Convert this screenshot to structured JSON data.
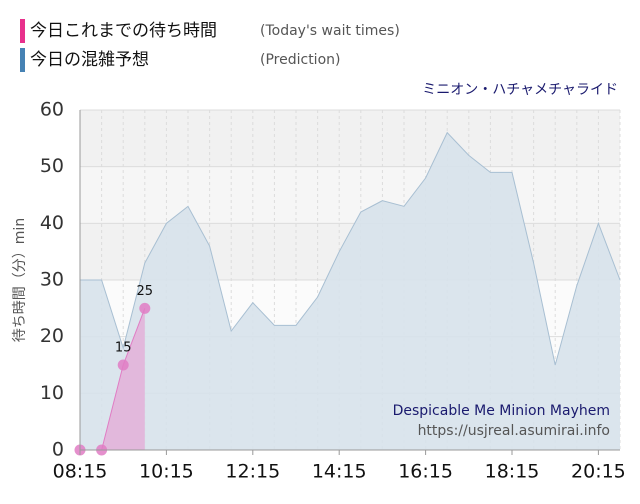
{
  "chart_data": {
    "type": "area",
    "title": "ミニオン・ハチャメチャライド",
    "ylabel": "待ち時間（分）min",
    "annotations": [
      "Despicable Me Minion Mayhem",
      "https://usjreal.asumirai.info"
    ],
    "xlim": [
      495,
      1245
    ],
    "ylim": [
      0,
      60
    ],
    "xticks": [
      {
        "value": 495,
        "label": "08:15"
      },
      {
        "value": 615,
        "label": "10:15"
      },
      {
        "value": 735,
        "label": "12:15"
      },
      {
        "value": 855,
        "label": "14:15"
      },
      {
        "value": 975,
        "label": "16:15"
      },
      {
        "value": 1095,
        "label": "18:15"
      },
      {
        "value": 1215,
        "label": "20:15"
      }
    ],
    "yticks": [
      0,
      10,
      20,
      30,
      40,
      50,
      60
    ],
    "grid": true,
    "series": [
      {
        "name": "今日の混雑予想",
        "note": "(Prediction)",
        "color": "#4682b4",
        "fill": "#d7e2eb",
        "stroke": "#a8bfd2",
        "x": [
          495,
          525,
          555,
          585,
          615,
          645,
          675,
          705,
          735,
          765,
          795,
          825,
          855,
          885,
          915,
          945,
          975,
          1005,
          1035,
          1065,
          1095,
          1125,
          1155,
          1185,
          1215,
          1245
        ],
        "values": [
          30,
          30,
          18,
          33,
          40,
          43,
          36,
          21,
          26,
          22,
          22,
          27,
          35,
          42,
          44,
          43,
          48,
          56,
          52,
          49,
          49,
          33,
          15,
          29,
          40,
          30
        ]
      },
      {
        "name": "今日これまでの待ち時間",
        "note": "(Today's wait times)",
        "color": "#e8308c",
        "fill": "#e3b0d8",
        "stroke": "#e07cc4",
        "x": [
          495,
          525,
          555,
          585
        ],
        "values": [
          0,
          0,
          15,
          25
        ],
        "value_labels": [
          null,
          null,
          "15",
          "25"
        ]
      }
    ]
  }
}
